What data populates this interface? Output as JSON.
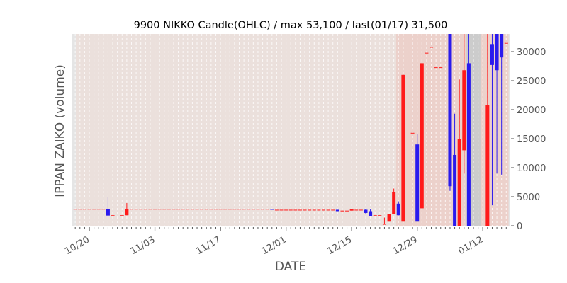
{
  "chart_data": {
    "type": "candlestick",
    "title": "9900 NIKKO Candle(OHLC) / max 53,100 / last(01/17) 31,500",
    "xlabel": "DATE",
    "ylabel": "IPPAN ZAIKO (volume)",
    "x_tick_labels": [
      "10/20",
      "11/03",
      "11/17",
      "12/01",
      "12/15",
      "12/29",
      "01/12"
    ],
    "y_ticks": [
      0,
      5000,
      10000,
      15000,
      20000,
      25000,
      30000
    ],
    "ylim": [
      -150,
      33000
    ],
    "xlim_dates": [
      "10/16",
      "01/18"
    ],
    "grid": "vertical dashed per day",
    "colors": {
      "up": "#ff1a1a",
      "down": "#2a1aee",
      "plot_bg": "#ebe0dc",
      "highlight": "#ecd1cb",
      "holiday": "#cccccc"
    },
    "background_bands": [
      {
        "from": "12/25",
        "to": "01/09",
        "color": "#ecd1cb"
      },
      {
        "from": "01/09",
        "to": "01/12",
        "color": "#cccccc"
      },
      {
        "from": "01/12",
        "to": "01/17",
        "color": "#ecd1cb"
      }
    ],
    "columns": [
      "date",
      "open",
      "high",
      "low",
      "close"
    ],
    "candles": [
      [
        "10/17",
        2900,
        2900,
        2900,
        2900
      ],
      [
        "10/18",
        2900,
        2900,
        2900,
        2900
      ],
      [
        "10/19",
        2900,
        2900,
        2900,
        2900
      ],
      [
        "10/20",
        2900,
        2900,
        2900,
        2900
      ],
      [
        "10/21",
        2900,
        2900,
        2900,
        2900
      ],
      [
        "10/22",
        2900,
        2900,
        2900,
        2900
      ],
      [
        "10/23",
        2900,
        2900,
        2900,
        2900
      ],
      [
        "10/24",
        2900,
        4900,
        1700,
        1750
      ],
      [
        "10/25",
        1800,
        1800,
        1800,
        1800
      ],
      [
        "10/27",
        1800,
        1800,
        1800,
        1800
      ],
      [
        "10/28",
        1800,
        3900,
        1800,
        2900
      ],
      [
        "10/29",
        2900,
        2900,
        2900,
        2900
      ],
      [
        "10/30",
        2900,
        2900,
        2900,
        2900
      ],
      [
        "10/31",
        2900,
        2900,
        2900,
        2900
      ],
      [
        "11/01",
        2900,
        2900,
        2900,
        2900
      ],
      [
        "11/02",
        2900,
        2900,
        2900,
        2900
      ],
      [
        "11/03",
        2900,
        2900,
        2900,
        2900
      ],
      [
        "11/04",
        2900,
        2900,
        2900,
        2900
      ],
      [
        "11/05",
        2900,
        2900,
        2900,
        2900
      ],
      [
        "11/06",
        2900,
        2900,
        2900,
        2900
      ],
      [
        "11/07",
        2900,
        2900,
        2900,
        2900
      ],
      [
        "11/08",
        2900,
        2900,
        2900,
        2900
      ],
      [
        "11/09",
        2900,
        2900,
        2900,
        2900
      ],
      [
        "11/10",
        2900,
        2900,
        2900,
        2900
      ],
      [
        "11/11",
        2900,
        2900,
        2900,
        2900
      ],
      [
        "11/12",
        2900,
        2900,
        2900,
        2900
      ],
      [
        "11/13",
        2900,
        2900,
        2900,
        2900
      ],
      [
        "11/14",
        2900,
        2900,
        2900,
        2900
      ],
      [
        "11/15",
        2900,
        2900,
        2900,
        2900
      ],
      [
        "11/16",
        2900,
        2900,
        2900,
        2900
      ],
      [
        "11/17",
        2900,
        2900,
        2900,
        2900
      ],
      [
        "11/18",
        2900,
        2900,
        2900,
        2900
      ],
      [
        "11/19",
        2900,
        2900,
        2900,
        2900
      ],
      [
        "11/20",
        2900,
        2900,
        2900,
        2900
      ],
      [
        "11/21",
        2900,
        2900,
        2900,
        2900
      ],
      [
        "11/22",
        2900,
        2900,
        2900,
        2900
      ],
      [
        "11/23",
        2900,
        2900,
        2900,
        2900
      ],
      [
        "11/24",
        2900,
        2900,
        2900,
        2900
      ],
      [
        "11/25",
        2900,
        2900,
        2900,
        2900
      ],
      [
        "11/26",
        2900,
        2900,
        2900,
        2900
      ],
      [
        "11/27",
        2900,
        2900,
        2900,
        2900
      ],
      [
        "11/28",
        2900,
        2900,
        2750,
        2750
      ],
      [
        "11/29",
        2750,
        2750,
        2750,
        2750
      ],
      [
        "11/30",
        2750,
        2750,
        2750,
        2750
      ],
      [
        "12/01",
        2750,
        2750,
        2750,
        2750
      ],
      [
        "12/02",
        2750,
        2750,
        2750,
        2750
      ],
      [
        "12/03",
        2750,
        2750,
        2750,
        2750
      ],
      [
        "12/04",
        2750,
        2750,
        2750,
        2750
      ],
      [
        "12/05",
        2750,
        2750,
        2750,
        2750
      ],
      [
        "12/06",
        2750,
        2750,
        2750,
        2750
      ],
      [
        "12/07",
        2750,
        2750,
        2750,
        2750
      ],
      [
        "12/08",
        2750,
        2750,
        2750,
        2750
      ],
      [
        "12/09",
        2750,
        2750,
        2750,
        2750
      ],
      [
        "12/10",
        2750,
        2750,
        2750,
        2750
      ],
      [
        "12/11",
        2750,
        2750,
        2750,
        2750
      ],
      [
        "12/12",
        2750,
        2750,
        2500,
        2500
      ],
      [
        "12/13",
        2600,
        2600,
        2600,
        2600
      ],
      [
        "12/14",
        2600,
        2600,
        2600,
        2600
      ],
      [
        "12/15",
        2600,
        2800,
        2600,
        2800
      ],
      [
        "12/16",
        2750,
        2750,
        2750,
        2750
      ],
      [
        "12/17",
        2750,
        2750,
        2750,
        2750
      ],
      [
        "12/18",
        2750,
        2900,
        2100,
        2200
      ],
      [
        "12/19",
        2500,
        2800,
        1600,
        1700
      ],
      [
        "12/20",
        1800,
        1800,
        1800,
        1800
      ],
      [
        "12/21",
        1800,
        1800,
        1800,
        1800
      ],
      [
        "12/22",
        300,
        1400,
        200,
        300
      ],
      [
        "12/23",
        700,
        2000,
        700,
        2000
      ],
      [
        "12/24",
        2000,
        6400,
        2000,
        5800
      ],
      [
        "12/25",
        3800,
        4200,
        1800,
        1800
      ],
      [
        "12/26",
        700,
        26000,
        700,
        26000
      ],
      [
        "12/27",
        20000,
        20000,
        20000,
        20000
      ],
      [
        "12/28",
        16000,
        16000,
        16000,
        16000
      ],
      [
        "12/29",
        14000,
        15800,
        700,
        700
      ],
      [
        "12/30",
        3000,
        28000,
        3000,
        28000
      ],
      [
        "12/31",
        29800,
        29800,
        29800,
        29800
      ],
      [
        "01/01",
        30800,
        30800,
        30800,
        30800
      ],
      [
        "01/02",
        27300,
        27300,
        27300,
        27300
      ],
      [
        "01/03",
        27300,
        27300,
        27300,
        27300
      ],
      [
        "01/04",
        28300,
        28300,
        28300,
        28300
      ],
      [
        "01/05",
        53100,
        53100,
        6000,
        6800
      ],
      [
        "01/06",
        12200,
        19300,
        0,
        0
      ],
      [
        "01/07",
        0,
        25200,
        0,
        15000
      ],
      [
        "01/08",
        13000,
        40000,
        9000,
        26800
      ],
      [
        "01/09",
        28000,
        40000,
        0,
        0
      ],
      [
        "01/10",
        0,
        0,
        0,
        0
      ],
      [
        "01/11",
        0,
        0,
        0,
        0
      ],
      [
        "01/12",
        0,
        0,
        0,
        0
      ],
      [
        "01/13",
        0,
        40000,
        0,
        20800
      ],
      [
        "01/14",
        31300,
        40000,
        3500,
        27700
      ],
      [
        "01/15",
        40000,
        40000,
        9000,
        26800
      ],
      [
        "01/16",
        40000,
        40000,
        8800,
        29000
      ],
      [
        "01/17",
        31500,
        31500,
        31500,
        31500
      ]
    ]
  }
}
